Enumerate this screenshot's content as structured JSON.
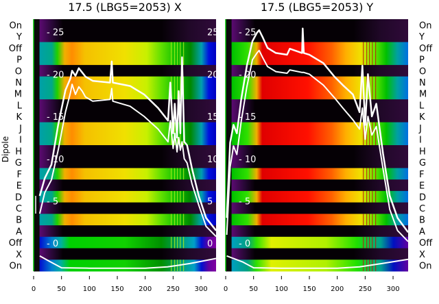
{
  "chart_data": [
    {
      "type": "heatmap",
      "title": "17.5 (LBG5=2053) X",
      "ylabel": "Dipole",
      "xlim": [
        0,
        327
      ],
      "x_ticks": [
        "0",
        "50",
        "100",
        "150",
        "200",
        "250",
        "300"
      ],
      "x_tick_values": [
        0,
        50,
        100,
        150,
        200,
        250,
        300
      ],
      "row_labels": [
        "On",
        "Y",
        "Off",
        "P",
        "O",
        "N",
        "M",
        "L",
        "K",
        "J",
        "I",
        "H",
        "G",
        "F",
        "E",
        "D",
        "C",
        "B",
        "A",
        "Off",
        "X",
        "On"
      ],
      "row_state": [
        "dark",
        "dark",
        "lit",
        "lit",
        "dark",
        "lit",
        "lit",
        "dark",
        "dark",
        "lit",
        "lit",
        "dark",
        "dark",
        "lit",
        "dark",
        "lit",
        "dark",
        "lit",
        "dark",
        "lit2",
        "dark",
        "lit2"
      ],
      "inner_ylim": [
        -3.3,
        26.5
      ],
      "inner_ticks": [
        "25",
        "20",
        "15",
        "10",
        "5",
        "0"
      ],
      "inner_tick_values": [
        25,
        20,
        15,
        10,
        5,
        0
      ],
      "series": [
        {
          "name": "upper",
          "x": [
            11,
            20,
            32,
            44,
            57,
            66,
            69,
            75,
            81,
            87,
            93,
            106,
            137,
            140,
            142,
            173,
            198,
            223,
            241,
            245,
            250,
            253,
            257,
            260,
            263,
            266,
            270,
            275,
            284,
            296,
            309,
            327
          ],
          "y": [
            5.6,
            7.7,
            9.3,
            14,
            18.1,
            19.5,
            20.4,
            19.8,
            20.7,
            20.2,
            19.7,
            19.2,
            19,
            21.5,
            19,
            18.6,
            17.6,
            16,
            14.5,
            19,
            13,
            16.5,
            12.5,
            18,
            13,
            22,
            12,
            11.6,
            8.8,
            5.6,
            3,
            1.5
          ]
        },
        {
          "name": "lower",
          "x": [
            11,
            20,
            32,
            44,
            57,
            66,
            69,
            75,
            81,
            87,
            93,
            106,
            137,
            140,
            142,
            173,
            198,
            223,
            241,
            245,
            250,
            253,
            257,
            260,
            263,
            266,
            270,
            275,
            284,
            296,
            309,
            327
          ],
          "y": [
            3.5,
            6,
            7.5,
            11,
            15.5,
            17.8,
            18.8,
            17.6,
            18.5,
            18,
            17.3,
            16.8,
            17,
            18.3,
            16.8,
            16.2,
            15,
            13.5,
            12,
            14.5,
            11.2,
            13,
            10.8,
            12.5,
            11,
            12,
            10,
            9.5,
            7,
            4.5,
            2,
            0.8
          ]
        },
        {
          "name": "baseline",
          "x": [
            11,
            30,
            50,
            100,
            200,
            240,
            280,
            327
          ],
          "y": [
            -1.5,
            -2.2,
            -2.9,
            -2.95,
            -2.95,
            -2.8,
            -2.4,
            -1.8
          ]
        }
      ]
    },
    {
      "type": "heatmap",
      "title": "17.5 (LBG5=2053) Y",
      "xlim": [
        0,
        327
      ],
      "x_ticks": [
        "0",
        "50",
        "100",
        "150",
        "200",
        "250",
        "300"
      ],
      "x_tick_values": [
        0,
        50,
        100,
        150,
        200,
        250,
        300
      ],
      "row_labels": [
        "On",
        "Y",
        "Off",
        "P",
        "O",
        "N",
        "M",
        "L",
        "K",
        "J",
        "I",
        "H",
        "G",
        "F",
        "E",
        "D",
        "C",
        "B",
        "A",
        "Off",
        "X",
        "On"
      ],
      "row_state": [
        "dark",
        "dark",
        "lit",
        "lit",
        "dark",
        "lit",
        "lit",
        "dark",
        "dark",
        "lit",
        "lit",
        "dark",
        "dark",
        "lit",
        "dark",
        "lit",
        "dark",
        "lit",
        "dark",
        "lit2",
        "dark",
        "lit2"
      ],
      "inner_ylim": [
        -3.3,
        26.5
      ],
      "inner_ticks": [
        "25",
        "20",
        "15",
        "10",
        "5",
        "0"
      ],
      "inner_tick_values": [
        25,
        20,
        15,
        10,
        5,
        0
      ],
      "series": [
        {
          "name": "upper",
          "x": [
            2,
            8,
            14,
            20,
            28,
            38,
            48,
            56,
            60,
            66,
            75,
            90,
            110,
            115,
            137,
            138,
            140,
            150,
            175,
            195,
            210,
            228,
            240,
            245,
            250,
            255,
            262,
            270,
            282,
            294,
            308,
            327
          ],
          "y": [
            3,
            11.9,
            14,
            13,
            17.1,
            21,
            23.9,
            24.9,
            25.2,
            24.4,
            23.1,
            22.5,
            22.3,
            23,
            22.5,
            25.4,
            22.5,
            22.3,
            21.3,
            19.7,
            18.7,
            17.6,
            15.5,
            21,
            14,
            20,
            15,
            16.5,
            10.6,
            5.6,
            3,
            1.3
          ]
        },
        {
          "name": "lower",
          "x": [
            2,
            8,
            14,
            20,
            28,
            38,
            48,
            56,
            60,
            66,
            75,
            90,
            110,
            115,
            137,
            140,
            150,
            175,
            195,
            210,
            228,
            240,
            245,
            250,
            255,
            262,
            270,
            282,
            294,
            308,
            327
          ],
          "y": [
            1,
            9,
            11.5,
            10.5,
            14.5,
            18.5,
            21.7,
            22.5,
            22.8,
            22,
            20.9,
            20.3,
            20.1,
            20.5,
            20.2,
            20.2,
            20,
            18.7,
            17.2,
            16,
            14.6,
            13.5,
            16,
            12.3,
            15,
            12.8,
            13.8,
            8.8,
            4,
            1.5,
            0.2
          ]
        },
        {
          "name": "baseline",
          "x": [
            2,
            30,
            50,
            100,
            200,
            240,
            280,
            327
          ],
          "y": [
            -1.5,
            -2.2,
            -2.9,
            -2.95,
            -2.95,
            -2.8,
            -2.4,
            -1.9
          ]
        }
      ]
    }
  ]
}
